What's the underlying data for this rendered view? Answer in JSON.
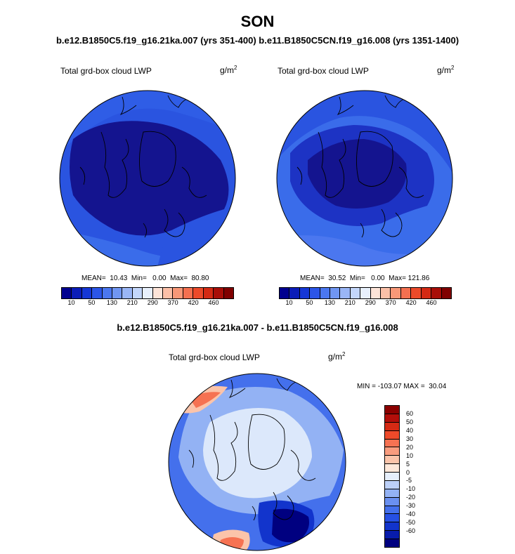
{
  "header": {
    "title": "SON",
    "subtitle": "b.e12.B1850C5.f19_g16.21ka.007 (yrs 351-400) b.e11.B1850C5CN.f19_g16.008 (yrs 1351-1400)"
  },
  "panels": [
    {
      "label": "Total grd-box cloud LWP",
      "units_base": "g/m",
      "units_exp": "2",
      "stats": "MEAN=  10.43  Min=   0.00  Max=  80.80"
    },
    {
      "label": "Total grd-box cloud LWP",
      "units_base": "g/m",
      "units_exp": "2",
      "stats": "MEAN=  30.52  Min=   0.00  Max= 121.86"
    }
  ],
  "colorbar_top": {
    "colors": [
      "#00008f",
      "#0b1db8",
      "#1537d6",
      "#2b55e8",
      "#4b77ef",
      "#7096f2",
      "#9ab6f6",
      "#c3d6fa",
      "#e8f0fc",
      "#fde4d8",
      "#fbc0a8",
      "#f89878",
      "#f47050",
      "#ec4a2a",
      "#d42a14",
      "#a80e08",
      "#800000"
    ],
    "tick_labels": [
      "10",
      "50",
      "130",
      "210",
      "290",
      "370",
      "420",
      "460"
    ]
  },
  "difference": {
    "title": "b.e12.B1850C5.f19_g16.21ka.007 - b.e11.B1850C5CN.f19_g16.008",
    "label": "Total grd-box cloud LWP",
    "units_base": "g/m",
    "units_exp": "2",
    "stats": "MIN = -103.07 MAX =  30.04",
    "colorbar": {
      "colors": [
        "#8b0000",
        "#b20e0a",
        "#d52a14",
        "#ee4a2a",
        "#f67252",
        "#f99c7e",
        "#fbc4aa",
        "#fde8da",
        "#e6effc",
        "#bcd0f8",
        "#93b2f4",
        "#6a90f0",
        "#4470ec",
        "#2650e4",
        "#1234cc",
        "#081cac",
        "#000080"
      ],
      "tick_labels": [
        "60",
        "50",
        "40",
        "30",
        "20",
        "10",
        "5",
        "0",
        "-5",
        "-10",
        "-20",
        "-30",
        "-40",
        "-50",
        "-60"
      ]
    }
  },
  "colors": {
    "map_dark": "#14148f",
    "map_mid": "#1d33c4",
    "map_light": "#2a54e0",
    "map_lighter": "#3a6cea",
    "diff_bg": "#dce8fb",
    "diff_mid": "#9ab8f4",
    "coast": "#000000"
  }
}
